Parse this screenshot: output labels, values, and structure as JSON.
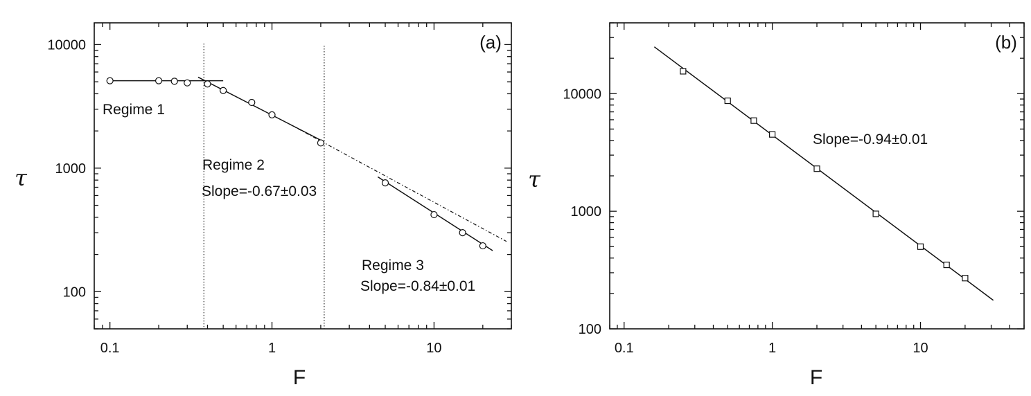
{
  "chart_data": [
    {
      "type": "scatter",
      "panel_label": "(a)",
      "xlabel": "F",
      "ylabel": "τ",
      "x_scale": "log",
      "y_scale": "log",
      "xlim": [
        0.08,
        30
      ],
      "ylim": [
        50,
        15000
      ],
      "x_ticks": [
        {
          "v": 0.1,
          "label": "0.1"
        },
        {
          "v": 1,
          "label": "1"
        },
        {
          "v": 10,
          "label": "10"
        }
      ],
      "y_ticks": [
        {
          "v": 100,
          "label": "100"
        },
        {
          "v": 1000,
          "label": "1000"
        },
        {
          "v": 10000,
          "label": "10000"
        }
      ],
      "series": [
        {
          "marker": "circle",
          "x": [
            0.1,
            0.2,
            0.25,
            0.3,
            0.4,
            0.5,
            0.75,
            1,
            2,
            5,
            10,
            15,
            20
          ],
          "y": [
            5100,
            5100,
            5050,
            4900,
            4800,
            4250,
            3400,
            2700,
            1600,
            760,
            420,
            300,
            235
          ]
        }
      ],
      "fit_lines": [
        {
          "style": "solid",
          "x": [
            0.1,
            0.5
          ],
          "y": [
            5100,
            5100
          ]
        },
        {
          "style": "solid",
          "x": [
            0.35,
            2.1
          ],
          "y": [
            5450,
            1630
          ]
        },
        {
          "style": "dashdot",
          "x": [
            1.3,
            28
          ],
          "y": [
            2250,
            255
          ]
        },
        {
          "style": "solid",
          "x": [
            4.5,
            23
          ],
          "y": [
            850,
            215
          ]
        }
      ],
      "vlines": [
        {
          "style": "dotted",
          "x": 0.38,
          "y_top": 10200
        },
        {
          "style": "dotted",
          "x": 2.1,
          "y_top": 9800
        }
      ],
      "annotations": [
        {
          "key": "regime1",
          "text": "Regime 1",
          "x": 0.088,
          "y": 3050
        },
        {
          "key": "regime2",
          "text": "Regime 2",
          "x": 0.4,
          "y": 990
        },
        {
          "key": "slope2",
          "text": "Slope=-0.67±0.03",
          "x": 0.38,
          "y": 580
        },
        {
          "key": "regime3",
          "text": "Regime 3",
          "x": 5.6,
          "y": 205
        },
        {
          "key": "slope3",
          "text": "Slope=-0.84±0.01",
          "x": 5.5,
          "y": 120
        }
      ]
    },
    {
      "type": "scatter",
      "panel_label": "(b)",
      "xlabel": "F",
      "ylabel": "τ",
      "x_scale": "log",
      "y_scale": "log",
      "xlim": [
        0.08,
        50
      ],
      "ylim": [
        100,
        40000
      ],
      "x_ticks": [
        {
          "v": 0.1,
          "label": "0.1"
        },
        {
          "v": 1,
          "label": "1"
        },
        {
          "v": 10,
          "label": "10"
        }
      ],
      "y_ticks": [
        {
          "v": 100,
          "label": "100"
        },
        {
          "v": 1000,
          "label": "1000"
        },
        {
          "v": 10000,
          "label": "10000"
        }
      ],
      "series": [
        {
          "marker": "square",
          "x": [
            0.25,
            0.5,
            0.75,
            1,
            2,
            5,
            10,
            15,
            20
          ],
          "y": [
            15500,
            8700,
            5900,
            4500,
            2300,
            950,
            500,
            350,
            270
          ]
        }
      ],
      "fit_lines": [
        {
          "style": "solid",
          "x": [
            0.16,
            31
          ],
          "y": [
            25000,
            175
          ]
        }
      ],
      "vlines": [],
      "annotations": [
        {
          "key": "slope",
          "text": "Slope=-0.94±0.01",
          "x": 2,
          "y": 5300
        }
      ]
    }
  ]
}
